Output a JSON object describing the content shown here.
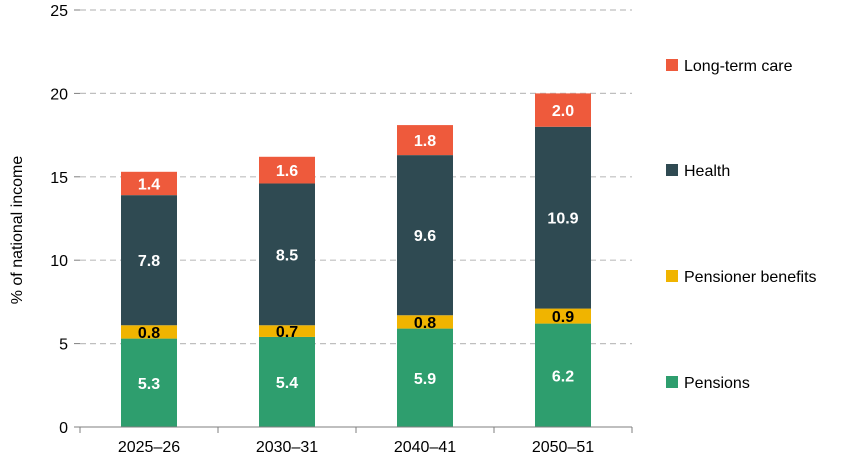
{
  "chart_data": {
    "type": "bar",
    "stacked": true,
    "categories": [
      "2025–26",
      "2030–31",
      "2040–41",
      "2050–51"
    ],
    "series": [
      {
        "name": "Pensions",
        "values": [
          5.3,
          5.4,
          5.9,
          6.2
        ],
        "color": "#2e9e6e",
        "label_color": "#ffffff"
      },
      {
        "name": "Pensioner benefits",
        "values": [
          0.8,
          0.7,
          0.8,
          0.9
        ],
        "color": "#f0b400",
        "label_color": "#000000"
      },
      {
        "name": "Health",
        "values": [
          7.8,
          8.5,
          9.6,
          10.9
        ],
        "color": "#2f4a52",
        "label_color": "#ffffff"
      },
      {
        "name": "Long-term care",
        "values": [
          1.4,
          1.6,
          1.8,
          2.0
        ],
        "color": "#ee5a3c",
        "label_color": "#ffffff"
      }
    ],
    "ylabel": "% of national income",
    "xlabel": "",
    "ylim": [
      0,
      25
    ],
    "yticks": [
      0,
      5,
      10,
      15,
      20,
      25
    ],
    "grid": true,
    "legend_position": "right"
  }
}
